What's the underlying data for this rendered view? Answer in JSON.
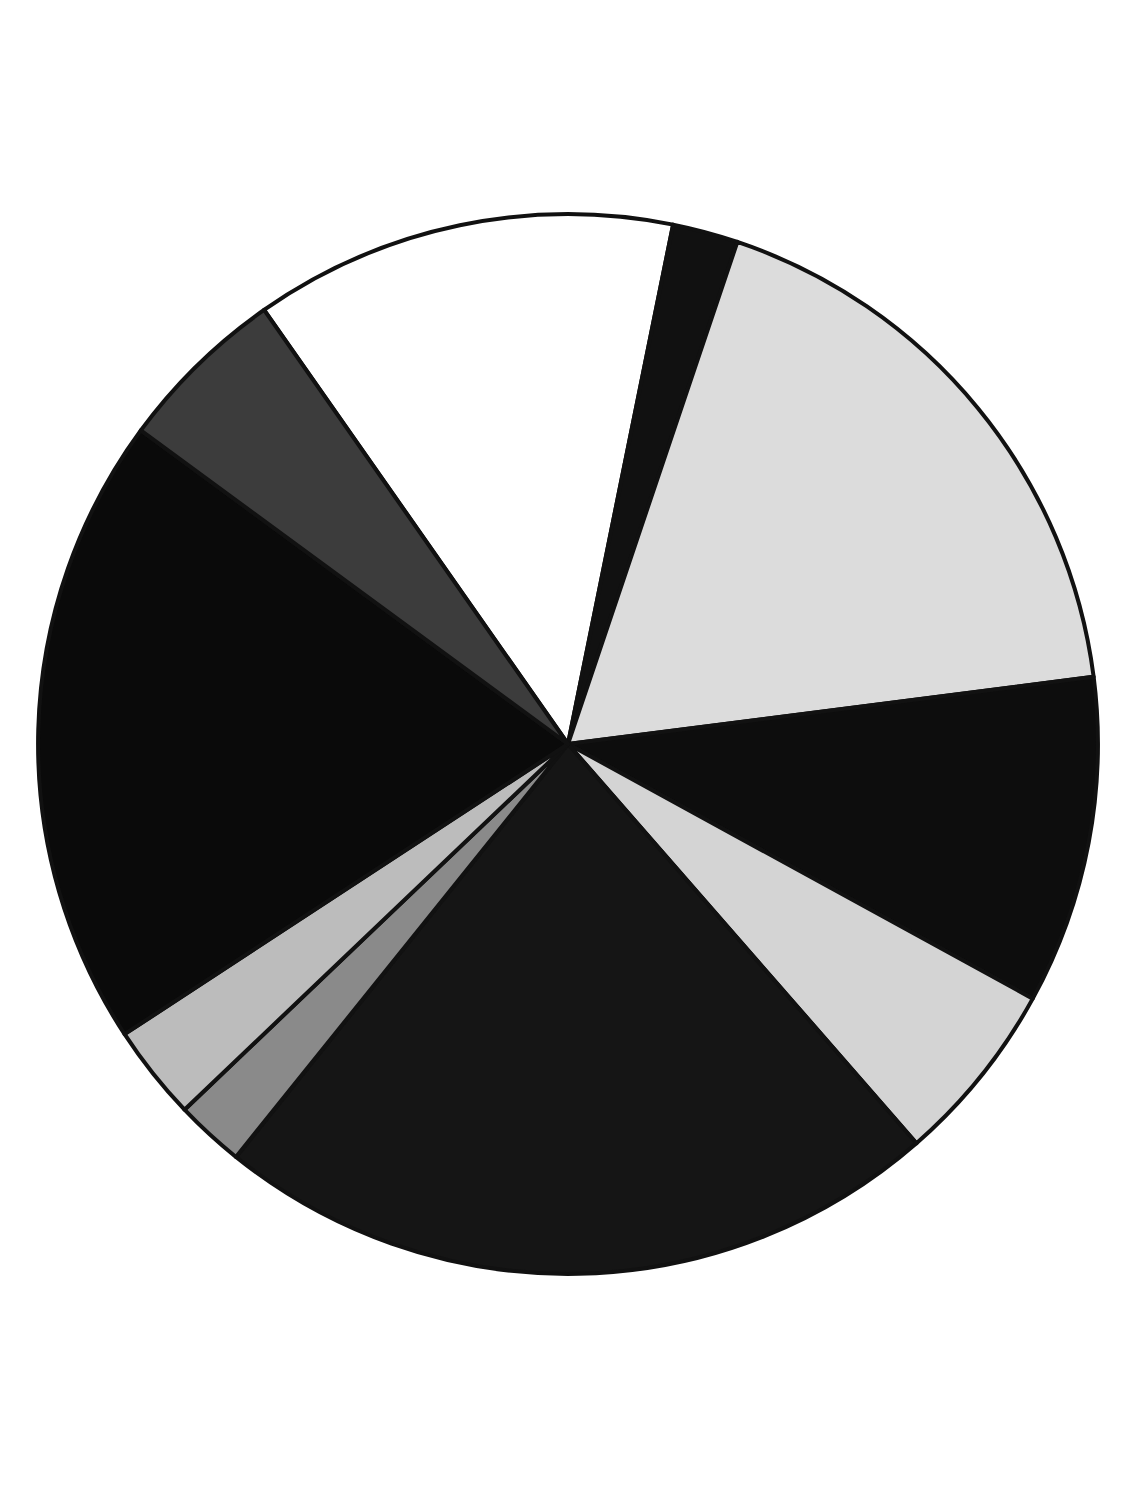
{
  "chart_data": {
    "type": "pie",
    "categories": [
      null,
      null,
      null,
      null,
      null,
      null,
      null,
      null,
      null,
      null
    ],
    "values": [
      12.9,
      2.0,
      17.8,
      10.0,
      5.6,
      22.2,
      2.1,
      2.9,
      19.3,
      5.2
    ],
    "colors": [
      "#ffffff",
      "#111111",
      "#dcdcdc",
      "#0d0d0d",
      "#d4d4d4",
      "#151515",
      "#8a8a8a",
      "#bcbcbc",
      "#0a0a0a",
      "#3c3c3c"
    ]
  }
}
